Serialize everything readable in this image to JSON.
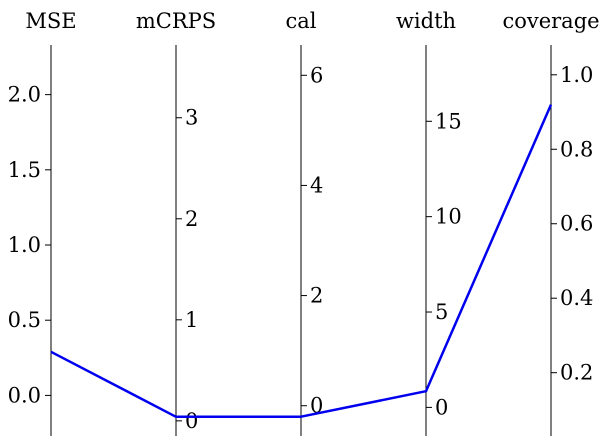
{
  "chart_data": {
    "type": "parallel_coordinates",
    "title": "",
    "colors": {
      "series": "#0000ee"
    },
    "axes": [
      {
        "name": "MSE",
        "range": [
          -0.27,
          2.33
        ],
        "ticks": [
          0.0,
          0.5,
          1.0,
          1.5,
          2.0
        ],
        "tick_labels": [
          "0.0",
          "0.5",
          "1.0",
          "1.5",
          "2.0"
        ],
        "tick_side": "left"
      },
      {
        "name": "mCRPS",
        "range": [
          -0.15,
          3.72
        ],
        "ticks": [
          0,
          1,
          2,
          3
        ],
        "tick_labels": [
          "0",
          "1",
          "2",
          "3"
        ],
        "tick_side": "right"
      },
      {
        "name": "cal",
        "range": [
          -0.55,
          6.55
        ],
        "ticks": [
          0,
          2,
          4,
          6
        ],
        "tick_labels": [
          "0",
          "2",
          "4",
          "6"
        ],
        "tick_side": "right"
      },
      {
        "name": "width",
        "range": [
          -1.5,
          19.0
        ],
        "ticks": [
          0,
          5,
          10,
          15
        ],
        "tick_labels": [
          "0",
          "5",
          "10",
          "15"
        ],
        "tick_side": "right"
      },
      {
        "name": "coverage",
        "range": [
          0.03,
          1.08
        ],
        "ticks": [
          0.2,
          0.4,
          0.6,
          0.8,
          1.0
        ],
        "tick_labels": [
          "0.2",
          "0.4",
          "0.6",
          "0.8",
          "1.0"
        ],
        "tick_side": "right"
      }
    ],
    "series": [
      {
        "values": [
          0.29,
          0.04,
          -0.2,
          0.85,
          0.92
        ]
      }
    ]
  }
}
